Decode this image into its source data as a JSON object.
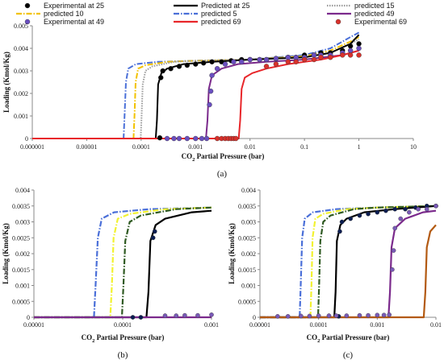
{
  "chart_data": [
    {
      "type": "line",
      "panel": "(a)",
      "ylabel": "Loading (Kmol/Kg)",
      "xlabel_main": "CO",
      "xlabel_sub": "2",
      "xlabel_rest": " Partial Pressure (bar)",
      "xscale": "log",
      "xlim": [
        1e-06,
        10
      ],
      "ylim": [
        0,
        0.005
      ],
      "x_ticks": [
        "0.000001",
        "0.00001",
        "0.0001",
        "0.001",
        "0.01",
        "0.1",
        "1",
        "10"
      ],
      "y_ticks": [
        "0",
        "0.001",
        "0.002",
        "0.003",
        "0.004",
        "0.005"
      ],
      "legend_position": "top",
      "legend": [
        {
          "label": "Experimental at 25",
          "kind": "marker",
          "color": "#000000"
        },
        {
          "label": "Predicted at 25",
          "kind": "solid",
          "color": "#000000"
        },
        {
          "label": "predicted 15",
          "kind": "dotted",
          "color": "#9a9a9a"
        },
        {
          "label": "predicted 10",
          "kind": "dashdot",
          "color": "#f2c200"
        },
        {
          "label": "predicted 5",
          "kind": "dashdot",
          "color": "#4a6fd8"
        },
        {
          "label": "predicted 49",
          "kind": "solid",
          "color": "#7b2a8c"
        },
        {
          "label": "Experimental at 49",
          "kind": "marker",
          "color": "#6a4fc0"
        },
        {
          "label": "predicted 69",
          "kind": "solid",
          "color": "#e8262a"
        },
        {
          "label": "Experimental 69",
          "kind": "marker",
          "color": "#d9312b"
        }
      ],
      "series": [
        {
          "color": "#4a6fd8",
          "style": "dashdot",
          "x": [
            1e-06,
            4.75e-05,
            4.95e-05,
            5.25e-05,
            5.8e-05,
            8e-05,
            0.0002,
            0.001,
            0.01,
            0.1,
            0.3,
            0.7,
            1.0
          ],
          "y": [
            0,
            0,
            0.001,
            0.0025,
            0.0031,
            0.0033,
            0.0034,
            0.00345,
            0.0035,
            0.0037,
            0.004,
            0.0045,
            0.0047
          ]
        },
        {
          "color": "#f2c200",
          "style": "dashdot",
          "x": [
            1e-06,
            7.25e-05,
            7.55e-05,
            7.9e-05,
            8.8e-05,
            0.00012,
            0.0003,
            0.001,
            0.01,
            0.1,
            0.3,
            0.7,
            1.0
          ],
          "y": [
            0,
            0,
            0.001,
            0.0025,
            0.0031,
            0.00325,
            0.0034,
            0.00345,
            0.0035,
            0.00365,
            0.0039,
            0.0043,
            0.0045
          ]
        },
        {
          "color": "#9a9a9a",
          "style": "dotted",
          "x": [
            1e-06,
            9.8e-05,
            0.000102,
            0.000107,
            0.00012,
            0.00016,
            0.0004,
            0.001,
            0.01,
            0.1,
            0.3,
            0.7,
            1.0
          ],
          "y": [
            0,
            0,
            0.001,
            0.0024,
            0.003,
            0.0032,
            0.0034,
            0.00345,
            0.0035,
            0.0036,
            0.0038,
            0.0042,
            0.0044
          ]
        },
        {
          "color": "#000000",
          "style": "solid",
          "x": [
            1e-06,
            0.000185,
            0.000195,
            0.000205,
            0.000235,
            0.0003,
            0.0006,
            0.002,
            0.01,
            0.1,
            0.3,
            0.7,
            1.0
          ],
          "y": [
            0,
            0,
            0.0008,
            0.0024,
            0.0029,
            0.0031,
            0.0033,
            0.0034,
            0.0035,
            0.0036,
            0.0038,
            0.0042,
            0.0046
          ]
        },
        {
          "color": "#7b2a8c",
          "style": "solid",
          "x": [
            1e-06,
            0.00155,
            0.00165,
            0.00175,
            0.002,
            0.003,
            0.006,
            0.02,
            0.1,
            0.5,
            1.0
          ],
          "y": [
            0,
            0,
            0.0008,
            0.0022,
            0.0028,
            0.0031,
            0.0033,
            0.0034,
            0.0035,
            0.0037,
            0.0039
          ]
        },
        {
          "color": "#e8262a",
          "style": "solid",
          "x": [
            1e-06,
            0.0062,
            0.0066,
            0.007,
            0.008,
            0.011,
            0.02,
            0.05,
            0.2,
            0.5,
            1.0
          ],
          "y": [
            0,
            0,
            0.0008,
            0.0022,
            0.0027,
            0.0029,
            0.0031,
            0.0033,
            0.0035,
            0.0037,
            0.0039
          ]
        }
      ],
      "points": [
        {
          "color": "#000000",
          "x": [
            0.00022,
            0.00023,
            0.00025,
            0.00035,
            0.0005,
            0.0007,
            0.001,
            0.0014,
            0.002,
            0.003,
            0.0045,
            0.007,
            0.01,
            0.015,
            0.02,
            0.03,
            0.05,
            0.07,
            0.1,
            0.15,
            0.2,
            0.3,
            0.5,
            0.7,
            1.0
          ],
          "y": [
            3e-05,
            0.0027,
            0.003,
            0.0031,
            0.0032,
            0.00325,
            0.0033,
            0.00335,
            0.0034,
            0.0034,
            0.00345,
            0.0035,
            0.0035,
            0.0035,
            0.0035,
            0.00355,
            0.0036,
            0.0036,
            0.0037,
            0.0037,
            0.0038,
            0.0038,
            0.0039,
            0.0041,
            0.0042
          ]
        },
        {
          "color": "#6a4fc0",
          "x": [
            0.0003,
            0.0004,
            0.0005,
            0.0007,
            0.001,
            0.0013,
            0.0016,
            0.0018,
            0.0019,
            0.002,
            0.0025,
            0.0035,
            0.005,
            0.007,
            0.01,
            0.015,
            0.02,
            0.03,
            0.05,
            0.07,
            0.1,
            0.15,
            0.2,
            0.3,
            0.5,
            0.7,
            1.0
          ],
          "y": [
            0,
            0,
            0,
            0,
            0,
            0,
            0,
            0.0015,
            0.0021,
            0.0028,
            0.0031,
            0.0033,
            0.0034,
            0.0034,
            0.0035,
            0.0035,
            0.0035,
            0.00355,
            0.0036,
            0.0036,
            0.0036,
            0.0037,
            0.0037,
            0.0037,
            0.0038,
            0.0039,
            0.004
          ]
        },
        {
          "color": "#d9312b",
          "x": [
            0.0025,
            0.003,
            0.0035,
            0.004,
            0.0045,
            0.005,
            0.0055,
            0.02,
            0.03,
            0.05,
            0.07,
            0.1,
            0.15,
            0.2,
            0.3,
            0.5,
            0.7,
            1.0
          ],
          "y": [
            0,
            0,
            0,
            0,
            0,
            0,
            0,
            0.0032,
            0.0033,
            0.0034,
            0.0034,
            0.0035,
            0.0035,
            0.0036,
            0.0036,
            0.0037,
            0.0037,
            0.0037
          ]
        }
      ]
    },
    {
      "type": "line",
      "panel": "(b)",
      "ylabel": "Loading (Kmol/Kg)",
      "xlabel_main": "CO",
      "xlabel_sub": "2",
      "xlabel_rest": " Partial Pressure (bar)",
      "xscale": "log",
      "xlim": [
        1e-05,
        0.001
      ],
      "ylim": [
        0,
        0.004
      ],
      "x_ticks": [
        "0.00001",
        "0.0001",
        "0.001"
      ],
      "y_ticks": [
        "0",
        "0.0005",
        "0.001",
        "0.0015",
        "0.002",
        "0.0025",
        "0.003",
        "0.0035",
        "0.004"
      ],
      "series": [
        {
          "color": "#4a6fd8",
          "style": "dashdot",
          "x": [
            1e-05,
            4.75e-05,
            4.95e-05,
            5.25e-05,
            5.8e-05,
            8e-05,
            0.0002,
            0.001
          ],
          "y": [
            0,
            0,
            0.001,
            0.0025,
            0.0031,
            0.0033,
            0.0034,
            0.00345
          ]
        },
        {
          "color": "#f2f230",
          "style": "dashdot",
          "x": [
            1e-05,
            7.25e-05,
            7.55e-05,
            7.9e-05,
            8.8e-05,
            0.00012,
            0.0003,
            0.001
          ],
          "y": [
            0,
            0,
            0.001,
            0.0025,
            0.0031,
            0.00325,
            0.0034,
            0.00345
          ]
        },
        {
          "color": "#2f5a22",
          "style": "dashdot",
          "x": [
            1e-05,
            9.8e-05,
            0.000102,
            0.000107,
            0.00012,
            0.00016,
            0.0004,
            0.001
          ],
          "y": [
            0,
            0,
            0.001,
            0.0024,
            0.003,
            0.0032,
            0.0034,
            0.00345
          ]
        },
        {
          "color": "#000000",
          "style": "solid",
          "x": [
            1e-05,
            0.000185,
            0.000195,
            0.000205,
            0.000235,
            0.0003,
            0.0006,
            0.001
          ],
          "y": [
            0,
            0,
            0.0008,
            0.0024,
            0.0029,
            0.0031,
            0.0033,
            0.00335
          ]
        },
        {
          "color": "#7b2a8c",
          "style": "solid",
          "x": [
            1e-05,
            0.001
          ],
          "y": [
            0,
            0
          ]
        }
      ],
      "points": [
        {
          "color": "#0b1d52",
          "x": [
            0.00013,
            0.00016,
            0.00022,
            0.00023
          ],
          "y": [
            0,
            0,
            0.0025,
            0.0027
          ]
        },
        {
          "color": "#7a5ab8",
          "x": [
            0.0003,
            0.0004,
            0.0005,
            0.0007,
            0.001
          ],
          "y": [
            5e-05,
            5e-05,
            6e-05,
            6e-05,
            8e-05
          ]
        }
      ]
    },
    {
      "type": "line",
      "panel": "(c)",
      "ylabel": "Loading (Kmol/Kg)",
      "xlabel_main": "CO",
      "xlabel_sub": "2",
      "xlabel_rest": " Partial Pressure (bar)",
      "xscale": "log",
      "xlim": [
        1e-05,
        0.01
      ],
      "ylim": [
        0,
        0.004
      ],
      "x_ticks": [
        "0.00001",
        "0.0001",
        "0.001",
        "0.01"
      ],
      "y_ticks": [
        "0",
        "0.0005",
        "0.001",
        "0.0015",
        "0.002",
        "0.0025",
        "0.003",
        "0.0035",
        "0.004"
      ],
      "series": [
        {
          "color": "#4a6fd8",
          "style": "dashdot",
          "x": [
            1e-05,
            4.75e-05,
            4.95e-05,
            5.25e-05,
            5.8e-05,
            8e-05,
            0.0002,
            0.001,
            0.01
          ],
          "y": [
            0,
            0,
            0.001,
            0.0025,
            0.0031,
            0.0033,
            0.0034,
            0.00345,
            0.0035
          ]
        },
        {
          "color": "#f2f230",
          "style": "dashdot",
          "x": [
            1e-05,
            7.25e-05,
            7.55e-05,
            7.9e-05,
            8.8e-05,
            0.00012,
            0.0003,
            0.001,
            0.01
          ],
          "y": [
            0,
            0,
            0.001,
            0.0025,
            0.0031,
            0.00325,
            0.0034,
            0.00345,
            0.0035
          ]
        },
        {
          "color": "#2f5a22",
          "style": "dashdot",
          "x": [
            1e-05,
            9.8e-05,
            0.000102,
            0.000107,
            0.00012,
            0.00016,
            0.0004,
            0.001,
            0.01
          ],
          "y": [
            0,
            0,
            0.001,
            0.0024,
            0.003,
            0.0032,
            0.0034,
            0.00345,
            0.0035
          ]
        },
        {
          "color": "#000000",
          "style": "solid",
          "x": [
            1e-05,
            0.000185,
            0.000195,
            0.000205,
            0.000235,
            0.0003,
            0.0006,
            0.002,
            0.01
          ],
          "y": [
            0,
            0,
            0.0008,
            0.0024,
            0.0029,
            0.0031,
            0.0033,
            0.0034,
            0.0035
          ]
        },
        {
          "color": "#7b2a8c",
          "style": "solid",
          "x": [
            1e-05,
            0.00155,
            0.00165,
            0.00175,
            0.002,
            0.003,
            0.006,
            0.01
          ],
          "y": [
            0,
            0,
            0.0008,
            0.0022,
            0.0028,
            0.0031,
            0.0033,
            0.00335
          ]
        },
        {
          "color": "#b35a12",
          "style": "solid",
          "x": [
            1e-05,
            0.0062,
            0.0066,
            0.007,
            0.008,
            0.01
          ],
          "y": [
            0,
            0,
            0.0008,
            0.0022,
            0.0027,
            0.0029
          ]
        }
      ],
      "points": [
        {
          "color": "#0b1d52",
          "x": [
            0.00022,
            0.00023,
            0.00025,
            0.00035,
            0.0005,
            0.0007,
            0.001,
            0.0014,
            0.002,
            0.003,
            0.0045,
            0.007,
            0.01
          ],
          "y": [
            3e-05,
            0.0027,
            0.003,
            0.0031,
            0.0032,
            0.00325,
            0.0033,
            0.00335,
            0.0034,
            0.0034,
            0.00345,
            0.0035,
            0.0035
          ]
        },
        {
          "color": "#7a5ab8",
          "x": [
            2e-05,
            3e-05,
            5e-05,
            7e-05,
            0.0001,
            0.00015,
            0.0002,
            0.0003,
            0.0005,
            0.0007,
            0.001,
            0.0013,
            0.0016,
            0.0018,
            0.0019,
            0.002,
            0.0025,
            0.0035,
            0.005,
            0.007,
            0.01
          ],
          "y": [
            3e-05,
            3e-05,
            4e-05,
            4e-05,
            5e-05,
            5e-05,
            5e-05,
            5e-05,
            6e-05,
            6e-05,
            7e-05,
            7e-05,
            8e-05,
            0.0015,
            0.0021,
            0.0028,
            0.0031,
            0.0033,
            0.0034,
            0.0034,
            0.0035
          ]
        }
      ]
    }
  ]
}
